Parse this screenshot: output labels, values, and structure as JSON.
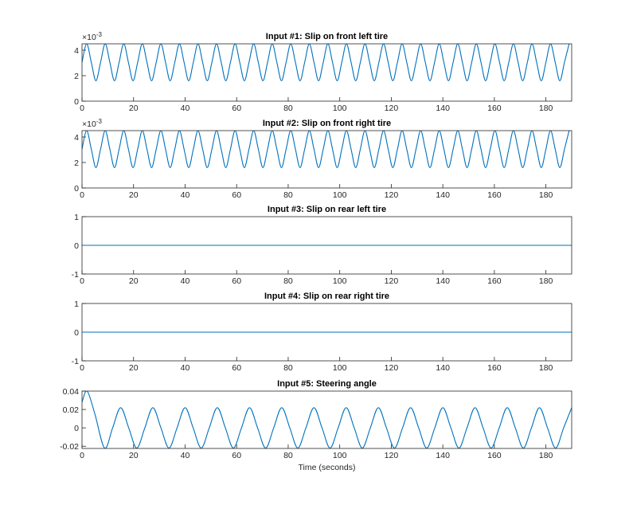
{
  "chart_data": [
    {
      "type": "line",
      "title": "Input #1: Slip on front left tire",
      "y_exponent_base": "×10",
      "y_exponent_power": "-3",
      "color": "#0072bd",
      "xlim": [
        0,
        190
      ],
      "xticks": [
        0,
        20,
        40,
        60,
        80,
        100,
        120,
        140,
        160,
        180
      ],
      "ylim": [
        0,
        4.5
      ],
      "yticks": [
        0,
        2,
        4
      ],
      "x": [
        0,
        1.8,
        3.6,
        5.4,
        7.2,
        9,
        10.8,
        12.6,
        14.4,
        16.2,
        18,
        19.8,
        21.6,
        23.4,
        25.2,
        27,
        28.8,
        30.6,
        32.4,
        34.2,
        36,
        37.8,
        39.6,
        41.4,
        43.2,
        45,
        46.8,
        48.6,
        50.4,
        52.2,
        54,
        55.8,
        57.6,
        59.4,
        61.2,
        63,
        64.8,
        66.6,
        68.4,
        70.2,
        72,
        73.8,
        75.6,
        77.4,
        79.2,
        81,
        82.8,
        84.6,
        86.4,
        88.2,
        90,
        91.8,
        93.6,
        95.4,
        97.2,
        99,
        100.8,
        102.6,
        104.4,
        106.2,
        108,
        109.8,
        111.6,
        113.4,
        115.2,
        117,
        118.8,
        120.6,
        122.4,
        124.2,
        126,
        127.8,
        129.6,
        131.4,
        133.2,
        135,
        136.8,
        138.6,
        140.4,
        142.2,
        144,
        145.8,
        147.6,
        149.4,
        151.2,
        153,
        154.8,
        156.6,
        158.4,
        160.2,
        162,
        163.8,
        165.6,
        167.4,
        169.2,
        171,
        172.8,
        174.6,
        176.4,
        178.2,
        180,
        181.8,
        183.6,
        185.4,
        187.2,
        189
      ],
      "values": [
        3.05,
        4.5,
        3.05,
        1.6,
        3.05,
        4.5,
        3.05,
        1.6,
        3.05,
        4.5,
        3.05,
        1.6,
        3.05,
        4.5,
        3.05,
        1.6,
        3.05,
        4.5,
        3.05,
        1.6,
        3.05,
        4.5,
        3.05,
        1.6,
        3.05,
        4.5,
        3.05,
        1.6,
        3.05,
        4.5,
        3.05,
        1.6,
        3.05,
        4.5,
        3.05,
        1.6,
        3.05,
        4.5,
        3.05,
        1.6,
        3.05,
        4.5,
        3.05,
        1.6,
        3.05,
        4.5,
        3.05,
        1.6,
        3.05,
        4.5,
        3.05,
        1.6,
        3.05,
        4.5,
        3.05,
        1.6,
        3.05,
        4.5,
        3.05,
        1.6,
        3.05,
        4.5,
        3.05,
        1.6,
        3.05,
        4.5,
        3.05,
        1.6,
        3.05,
        4.5,
        3.05,
        1.6,
        3.05,
        4.5,
        3.05,
        1.6,
        3.05,
        4.5,
        3.05,
        1.6,
        3.05,
        4.5,
        3.05,
        1.6,
        3.05,
        4.5,
        3.05,
        1.6,
        3.05,
        4.5,
        3.05,
        1.6,
        3.05,
        4.5,
        3.05,
        1.6,
        3.05,
        4.5,
        3.05,
        1.6,
        3.05,
        4.5,
        3.05,
        1.6,
        3.05,
        4.5
      ]
    },
    {
      "type": "line",
      "title": "Input #2: Slip on front right tire",
      "y_exponent_base": "×10",
      "y_exponent_power": "-3",
      "color": "#0072bd",
      "xlim": [
        0,
        190
      ],
      "xticks": [
        0,
        20,
        40,
        60,
        80,
        100,
        120,
        140,
        160,
        180
      ],
      "ylim": [
        0,
        4.5
      ],
      "yticks": [
        0,
        2,
        4
      ],
      "x": [
        0,
        1.8,
        3.6,
        5.4,
        7.2,
        9,
        10.8,
        12.6,
        14.4,
        16.2,
        18,
        19.8,
        21.6,
        23.4,
        25.2,
        27,
        28.8,
        30.6,
        32.4,
        34.2,
        36,
        37.8,
        39.6,
        41.4,
        43.2,
        45,
        46.8,
        48.6,
        50.4,
        52.2,
        54,
        55.8,
        57.6,
        59.4,
        61.2,
        63,
        64.8,
        66.6,
        68.4,
        70.2,
        72,
        73.8,
        75.6,
        77.4,
        79.2,
        81,
        82.8,
        84.6,
        86.4,
        88.2,
        90,
        91.8,
        93.6,
        95.4,
        97.2,
        99,
        100.8,
        102.6,
        104.4,
        106.2,
        108,
        109.8,
        111.6,
        113.4,
        115.2,
        117,
        118.8,
        120.6,
        122.4,
        124.2,
        126,
        127.8,
        129.6,
        131.4,
        133.2,
        135,
        136.8,
        138.6,
        140.4,
        142.2,
        144,
        145.8,
        147.6,
        149.4,
        151.2,
        153,
        154.8,
        156.6,
        158.4,
        160.2,
        162,
        163.8,
        165.6,
        167.4,
        169.2,
        171,
        172.8,
        174.6,
        176.4,
        178.2,
        180,
        181.8,
        183.6,
        185.4,
        187.2,
        189
      ],
      "values": [
        3.05,
        4.5,
        3.05,
        1.6,
        3.05,
        4.5,
        3.05,
        1.6,
        3.05,
        4.5,
        3.05,
        1.6,
        3.05,
        4.5,
        3.05,
        1.6,
        3.05,
        4.5,
        3.05,
        1.6,
        3.05,
        4.5,
        3.05,
        1.6,
        3.05,
        4.5,
        3.05,
        1.6,
        3.05,
        4.5,
        3.05,
        1.6,
        3.05,
        4.5,
        3.05,
        1.6,
        3.05,
        4.5,
        3.05,
        1.6,
        3.05,
        4.5,
        3.05,
        1.6,
        3.05,
        4.5,
        3.05,
        1.6,
        3.05,
        4.5,
        3.05,
        1.6,
        3.05,
        4.5,
        3.05,
        1.6,
        3.05,
        4.5,
        3.05,
        1.6,
        3.05,
        4.5,
        3.05,
        1.6,
        3.05,
        4.5,
        3.05,
        1.6,
        3.05,
        4.5,
        3.05,
        1.6,
        3.05,
        4.5,
        3.05,
        1.6,
        3.05,
        4.5,
        3.05,
        1.6,
        3.05,
        4.5,
        3.05,
        1.6,
        3.05,
        4.5,
        3.05,
        1.6,
        3.05,
        4.5,
        3.05,
        1.6,
        3.05,
        4.5,
        3.05,
        1.6,
        3.05,
        4.5,
        3.05,
        1.6,
        3.05,
        4.5,
        3.05,
        1.6,
        3.05,
        4.5
      ]
    },
    {
      "type": "line",
      "title": "Input #3: Slip on rear left tire",
      "color": "#0072bd",
      "xlim": [
        0,
        190
      ],
      "xticks": [
        0,
        20,
        40,
        60,
        80,
        100,
        120,
        140,
        160,
        180
      ],
      "ylim": [
        -1,
        1
      ],
      "yticks": [
        -1,
        0,
        1
      ],
      "x": [
        0,
        190
      ],
      "values": [
        0,
        0
      ]
    },
    {
      "type": "line",
      "title": "Input #4: Slip on rear right tire",
      "color": "#0072bd",
      "xlim": [
        0,
        190
      ],
      "xticks": [
        0,
        20,
        40,
        60,
        80,
        100,
        120,
        140,
        160,
        180
      ],
      "ylim": [
        -1,
        1
      ],
      "yticks": [
        -1,
        0,
        1
      ],
      "x": [
        0,
        190
      ],
      "values": [
        0,
        0
      ]
    },
    {
      "type": "line",
      "title": "Input #5: Steering angle",
      "xlabel": "Time (seconds)",
      "color": "#0072bd",
      "xlim": [
        0,
        190
      ],
      "xticks": [
        0,
        20,
        40,
        60,
        80,
        100,
        120,
        140,
        160,
        180
      ],
      "ylim": [
        -0.0224,
        0.04
      ],
      "yticks": [
        -0.02,
        0,
        0.02,
        0.04
      ],
      "x": [
        0,
        2,
        5,
        8.75,
        11.875,
        15,
        18.125,
        21.25,
        24.375,
        27.5,
        30.625,
        33.75,
        36.875,
        40,
        43.125,
        46.25,
        49.375,
        52.5,
        55.625,
        58.75,
        61.875,
        65,
        68.125,
        71.25,
        74.375,
        77.5,
        80.625,
        83.75,
        86.875,
        90,
        93.125,
        96.25,
        99.375,
        102.5,
        105.625,
        108.75,
        111.875,
        115,
        118.125,
        121.25,
        124.375,
        127.5,
        130.625,
        133.75,
        136.875,
        140,
        143.125,
        146.25,
        149.375,
        152.5,
        155.625,
        158.75,
        161.875,
        165,
        168.125,
        171.25,
        174.375,
        177.5,
        180.625,
        183.75,
        186.875,
        190
      ],
      "values": [
        0.028,
        0.04,
        0.015,
        -0.022,
        0,
        0.022,
        0,
        -0.022,
        0,
        0.022,
        0,
        -0.022,
        0,
        0.022,
        0,
        -0.022,
        0,
        0.022,
        0,
        -0.022,
        0,
        0.022,
        0,
        -0.022,
        0,
        0.022,
        0,
        -0.022,
        0,
        0.022,
        0,
        -0.022,
        0,
        0.022,
        0,
        -0.022,
        0,
        0.022,
        0,
        -0.022,
        0,
        0.022,
        0,
        -0.022,
        0,
        0.022,
        0,
        -0.022,
        0,
        0.022,
        0,
        -0.022,
        0,
        0.022,
        0,
        -0.022,
        0,
        0.022,
        0,
        -0.022,
        0,
        0.022
      ]
    }
  ]
}
